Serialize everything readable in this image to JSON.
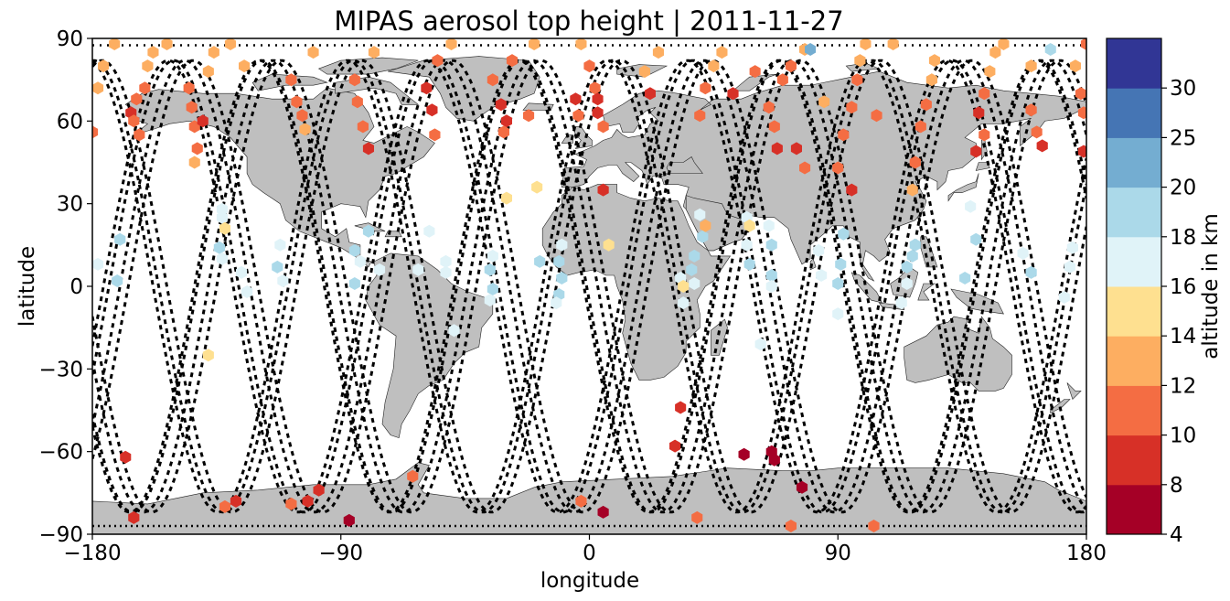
{
  "chart_data": {
    "type": "scatter",
    "title": "MIPAS aerosol top height | 2011-11-27",
    "xlabel": "longitude",
    "ylabel": "latitude",
    "xlim": [
      -180,
      180
    ],
    "ylim": [
      -90,
      90
    ],
    "x_ticks": [
      -180,
      -90,
      0,
      90,
      180
    ],
    "x_tick_labels": [
      "−180",
      "−90",
      "0",
      "90",
      "180"
    ],
    "y_ticks": [
      -90,
      -60,
      -30,
      0,
      30,
      60,
      90
    ],
    "y_tick_labels": [
      "−90",
      "−60",
      "−30",
      "0",
      "30",
      "60",
      "90"
    ],
    "grid": false,
    "background": "world map (gray land)",
    "land_color": "#bfbfbf",
    "track_style": "black dotted satellite ground tracks",
    "colorbar": {
      "label": "altitude in km",
      "boundaries": [
        4,
        8,
        10,
        12,
        14,
        16,
        18,
        20,
        25,
        30
      ],
      "tick_labels": [
        "4",
        "8",
        "10",
        "12",
        "14",
        "16",
        "18",
        "20",
        "25",
        "30"
      ],
      "colors": [
        "#a50026",
        "#d73027",
        "#f46d43",
        "#fdae61",
        "#fee090",
        "#e0f3f8",
        "#abd9e9",
        "#74add1",
        "#4575b4",
        "#313695"
      ]
    },
    "points": [
      {
        "lon": -178,
        "lat": 72,
        "alt": 13
      },
      {
        "lon": -176,
        "lat": 80,
        "alt": 13
      },
      {
        "lon": -172,
        "lat": 88,
        "alt": 13
      },
      {
        "lon": -180,
        "lat": 56,
        "alt": 11
      },
      {
        "lon": -166,
        "lat": 63,
        "alt": 9
      },
      {
        "lon": -164,
        "lat": 68,
        "alt": 11
      },
      {
        "lon": -165,
        "lat": 60,
        "alt": 11
      },
      {
        "lon": -163,
        "lat": 55,
        "alt": 11
      },
      {
        "lon": -161,
        "lat": 72,
        "alt": 11
      },
      {
        "lon": -160,
        "lat": 80,
        "alt": 13
      },
      {
        "lon": -158,
        "lat": 85,
        "alt": 13
      },
      {
        "lon": -153,
        "lat": 88,
        "alt": 13
      },
      {
        "lon": -145,
        "lat": 72,
        "alt": 11
      },
      {
        "lon": -144,
        "lat": 65,
        "alt": 11
      },
      {
        "lon": -143,
        "lat": 58,
        "alt": 11
      },
      {
        "lon": -142,
        "lat": 50,
        "alt": 11
      },
      {
        "lon": -143,
        "lat": 45,
        "alt": 13
      },
      {
        "lon": -140,
        "lat": 60,
        "alt": 9
      },
      {
        "lon": -138,
        "lat": 78,
        "alt": 13
      },
      {
        "lon": -136,
        "lat": 85,
        "alt": 13
      },
      {
        "lon": -130,
        "lat": 88,
        "alt": 13
      },
      {
        "lon": -125,
        "lat": 80,
        "alt": 13
      },
      {
        "lon": -108,
        "lat": 75,
        "alt": 11
      },
      {
        "lon": -106,
        "lat": 67,
        "alt": 11
      },
      {
        "lon": -104,
        "lat": 62,
        "alt": 11
      },
      {
        "lon": -103,
        "lat": 57,
        "alt": 13
      },
      {
        "lon": -100,
        "lat": 85,
        "alt": 13
      },
      {
        "lon": -85,
        "lat": 75,
        "alt": 11
      },
      {
        "lon": -84,
        "lat": 67,
        "alt": 11
      },
      {
        "lon": -82,
        "lat": 58,
        "alt": 11
      },
      {
        "lon": -80,
        "lat": 50,
        "alt": 9
      },
      {
        "lon": -78,
        "lat": 85,
        "alt": 13
      },
      {
        "lon": -59,
        "lat": 72,
        "alt": 9
      },
      {
        "lon": -57,
        "lat": 64,
        "alt": 9
      },
      {
        "lon": -56,
        "lat": 55,
        "alt": 11
      },
      {
        "lon": -55,
        "lat": 82,
        "alt": 11
      },
      {
        "lon": -50,
        "lat": 88,
        "alt": 13
      },
      {
        "lon": -35,
        "lat": 75,
        "alt": 11
      },
      {
        "lon": -32,
        "lat": 66,
        "alt": 9
      },
      {
        "lon": -30,
        "lat": 60,
        "alt": 9
      },
      {
        "lon": -31,
        "lat": 56,
        "alt": 11
      },
      {
        "lon": -28,
        "lat": 82,
        "alt": 11
      },
      {
        "lon": -22,
        "lat": 62,
        "alt": 11
      },
      {
        "lon": -20,
        "lat": 88,
        "alt": 13
      },
      {
        "lon": -5,
        "lat": 68,
        "alt": 9
      },
      {
        "lon": -4,
        "lat": 62,
        "alt": 11
      },
      {
        "lon": -3,
        "lat": 88,
        "alt": 13
      },
      {
        "lon": 0,
        "lat": 80,
        "alt": 11
      },
      {
        "lon": 2,
        "lat": 72,
        "alt": 11
      },
      {
        "lon": 3,
        "lat": 68,
        "alt": 9
      },
      {
        "lon": 3,
        "lat": 63,
        "alt": 9
      },
      {
        "lon": 5,
        "lat": 58,
        "alt": 11
      },
      {
        "lon": 20,
        "lat": 78,
        "alt": 13
      },
      {
        "lon": 22,
        "lat": 70,
        "alt": 9
      },
      {
        "lon": 25,
        "lat": 85,
        "alt": 13
      },
      {
        "lon": 40,
        "lat": 62,
        "alt": 11
      },
      {
        "lon": 42,
        "lat": 72,
        "alt": 11
      },
      {
        "lon": 45,
        "lat": 80,
        "alt": 13
      },
      {
        "lon": 48,
        "lat": 85,
        "alt": 13
      },
      {
        "lon": 52,
        "lat": 70,
        "alt": 9
      },
      {
        "lon": 65,
        "lat": 65,
        "alt": 11
      },
      {
        "lon": 67,
        "lat": 58,
        "alt": 11
      },
      {
        "lon": 68,
        "lat": 50,
        "alt": 9
      },
      {
        "lon": 70,
        "lat": 75,
        "alt": 11
      },
      {
        "lon": 73,
        "lat": 80,
        "alt": 11
      },
      {
        "lon": 78,
        "lat": 86,
        "alt": 13
      },
      {
        "lon": 75,
        "lat": 50,
        "alt": 9
      },
      {
        "lon": 78,
        "lat": 43,
        "alt": 11
      },
      {
        "lon": 80,
        "lat": 86,
        "alt": 22
      },
      {
        "lon": 90,
        "lat": 43,
        "alt": 11
      },
      {
        "lon": 92,
        "lat": 55,
        "alt": 11
      },
      {
        "lon": 95,
        "lat": 65,
        "alt": 11
      },
      {
        "lon": 97,
        "lat": 75,
        "alt": 11
      },
      {
        "lon": 98,
        "lat": 82,
        "alt": 13
      },
      {
        "lon": 100,
        "lat": 88,
        "alt": 13
      },
      {
        "lon": 104,
        "lat": 62,
        "alt": 11
      },
      {
        "lon": 110,
        "lat": 88,
        "alt": 13
      },
      {
        "lon": 118,
        "lat": 45,
        "alt": 11
      },
      {
        "lon": 120,
        "lat": 58,
        "alt": 11
      },
      {
        "lon": 122,
        "lat": 66,
        "alt": 11
      },
      {
        "lon": 124,
        "lat": 75,
        "alt": 13
      },
      {
        "lon": 125,
        "lat": 82,
        "alt": 13
      },
      {
        "lon": 117,
        "lat": 35,
        "alt": 13
      },
      {
        "lon": 141,
        "lat": 63,
        "alt": 9
      },
      {
        "lon": 143,
        "lat": 70,
        "alt": 11
      },
      {
        "lon": 145,
        "lat": 78,
        "alt": 13
      },
      {
        "lon": 147,
        "lat": 85,
        "alt": 13
      },
      {
        "lon": 150,
        "lat": 88,
        "alt": 13
      },
      {
        "lon": 160,
        "lat": 64,
        "alt": 11
      },
      {
        "lon": 162,
        "lat": 56,
        "alt": 11
      },
      {
        "lon": 164,
        "lat": 51,
        "alt": 9
      },
      {
        "lon": 160,
        "lat": 80,
        "alt": 13
      },
      {
        "lon": 167,
        "lat": 86,
        "alt": 19
      },
      {
        "lon": 176,
        "lat": 80,
        "alt": 13
      },
      {
        "lon": 178,
        "lat": 70,
        "alt": 11
      },
      {
        "lon": 179,
        "lat": 63,
        "alt": 11
      },
      {
        "lon": 179,
        "lat": 49,
        "alt": 9
      },
      {
        "lon": 180,
        "lat": 88,
        "alt": 11
      },
      {
        "lon": 140,
        "lat": 49,
        "alt": 9
      },
      {
        "lon": 143,
        "lat": 55,
        "alt": 11
      },
      {
        "lon": 85,
        "lat": 67,
        "alt": 13
      },
      {
        "lon": 60,
        "lat": 78,
        "alt": 11
      },
      {
        "lon": 95,
        "lat": 35,
        "alt": 9
      },
      {
        "lon": 5,
        "lat": 35,
        "alt": 9
      },
      {
        "lon": -30,
        "lat": 32,
        "alt": 15
      },
      {
        "lon": -19,
        "lat": 36,
        "alt": 15
      },
      {
        "lon": -170,
        "lat": 17,
        "alt": 19
      },
      {
        "lon": -171,
        "lat": 2,
        "alt": 19
      },
      {
        "lon": -178,
        "lat": 8,
        "alt": 17
      },
      {
        "lon": -133,
        "lat": 25,
        "alt": 17
      },
      {
        "lon": -134,
        "lat": 14,
        "alt": 19
      },
      {
        "lon": -133,
        "lat": 28,
        "alt": 17
      },
      {
        "lon": -132,
        "lat": 21,
        "alt": 15
      },
      {
        "lon": -133,
        "lat": 10,
        "alt": 17
      },
      {
        "lon": -126,
        "lat": 5,
        "alt": 17
      },
      {
        "lon": -124,
        "lat": -2,
        "alt": 17
      },
      {
        "lon": -112,
        "lat": 15,
        "alt": 17
      },
      {
        "lon": -113,
        "lat": 7,
        "alt": 19
      },
      {
        "lon": -111,
        "lat": 2,
        "alt": 17
      },
      {
        "lon": -85,
        "lat": 13,
        "alt": 19
      },
      {
        "lon": -83,
        "lat": 9,
        "alt": 17
      },
      {
        "lon": -85,
        "lat": 1,
        "alt": 19
      },
      {
        "lon": -80,
        "lat": 20,
        "alt": 19
      },
      {
        "lon": -76,
        "lat": 6,
        "alt": 17
      },
      {
        "lon": -58,
        "lat": 20,
        "alt": 17
      },
      {
        "lon": -62,
        "lat": 6,
        "alt": 17
      },
      {
        "lon": -52,
        "lat": 9,
        "alt": 17
      },
      {
        "lon": -49,
        "lat": -16,
        "alt": 17
      },
      {
        "lon": -52,
        "lat": 5,
        "alt": 17
      },
      {
        "lon": -35,
        "lat": 11,
        "alt": 17
      },
      {
        "lon": -36,
        "lat": 6,
        "alt": 19
      },
      {
        "lon": -35,
        "lat": -1,
        "alt": 19
      },
      {
        "lon": -36,
        "lat": -5,
        "alt": 17
      },
      {
        "lon": -18,
        "lat": 9,
        "alt": 19
      },
      {
        "lon": -10,
        "lat": 15,
        "alt": 17
      },
      {
        "lon": -11,
        "lat": 9,
        "alt": 19
      },
      {
        "lon": -10,
        "lat": 3,
        "alt": 19
      },
      {
        "lon": -11,
        "lat": -3,
        "alt": 19
      },
      {
        "lon": -12,
        "lat": -6,
        "alt": 17
      },
      {
        "lon": 7,
        "lat": 15,
        "alt": 15
      },
      {
        "lon": 40,
        "lat": 26,
        "alt": 17
      },
      {
        "lon": 41,
        "lat": 18,
        "alt": 19
      },
      {
        "lon": 42,
        "lat": 22,
        "alt": 13
      },
      {
        "lon": 38,
        "lat": 11,
        "alt": 19
      },
      {
        "lon": 37,
        "lat": 6,
        "alt": 19
      },
      {
        "lon": 38,
        "lat": 1,
        "alt": 17
      },
      {
        "lon": 33,
        "lat": 3,
        "alt": 17
      },
      {
        "lon": 34,
        "lat": -6,
        "alt": 17
      },
      {
        "lon": 34,
        "lat": 0,
        "alt": 15
      },
      {
        "lon": 57,
        "lat": 25,
        "alt": 17
      },
      {
        "lon": 58,
        "lat": 22,
        "alt": 15
      },
      {
        "lon": 57,
        "lat": 15,
        "alt": 17
      },
      {
        "lon": 58,
        "lat": 8,
        "alt": 19
      },
      {
        "lon": 65,
        "lat": 22,
        "alt": 17
      },
      {
        "lon": 66,
        "lat": 15,
        "alt": 19
      },
      {
        "lon": 66,
        "lat": 4,
        "alt": 19
      },
      {
        "lon": 66,
        "lat": 0,
        "alt": 17
      },
      {
        "lon": 62,
        "lat": -21,
        "alt": 17
      },
      {
        "lon": 83,
        "lat": 13,
        "alt": 17
      },
      {
        "lon": 84,
        "lat": 4,
        "alt": 17
      },
      {
        "lon": 90,
        "lat": 1,
        "alt": 19
      },
      {
        "lon": 91,
        "lat": 8,
        "alt": 19
      },
      {
        "lon": 90,
        "lat": -10,
        "alt": 17
      },
      {
        "lon": 92,
        "lat": 19,
        "alt": 19
      },
      {
        "lon": 118,
        "lat": 15,
        "alt": 19
      },
      {
        "lon": 117,
        "lat": 11,
        "alt": 19
      },
      {
        "lon": 115,
        "lat": 7,
        "alt": 19
      },
      {
        "lon": 115,
        "lat": 1,
        "alt": 17
      },
      {
        "lon": 113,
        "lat": -6,
        "alt": 17
      },
      {
        "lon": 138,
        "lat": 29,
        "alt": 17
      },
      {
        "lon": 140,
        "lat": 17,
        "alt": 19
      },
      {
        "lon": 136,
        "lat": 3,
        "alt": 19
      },
      {
        "lon": 157,
        "lat": 12,
        "alt": 17
      },
      {
        "lon": 160,
        "lat": 5,
        "alt": 19
      },
      {
        "lon": 175,
        "lat": 14,
        "alt": 17
      },
      {
        "lon": 174,
        "lat": 7,
        "alt": 17
      },
      {
        "lon": 172,
        "lat": -4,
        "alt": 17
      },
      {
        "lon": -138,
        "lat": -25,
        "alt": 15
      },
      {
        "lon": -168,
        "lat": -62,
        "alt": 9
      },
      {
        "lon": -165,
        "lat": -84,
        "alt": 9
      },
      {
        "lon": -132,
        "lat": -80,
        "alt": 11
      },
      {
        "lon": -128,
        "lat": -78,
        "alt": 9
      },
      {
        "lon": -108,
        "lat": -79,
        "alt": 11
      },
      {
        "lon": -102,
        "lat": -78,
        "alt": 9
      },
      {
        "lon": -98,
        "lat": -74,
        "alt": 9
      },
      {
        "lon": -87,
        "lat": -85,
        "alt": 6
      },
      {
        "lon": -64,
        "lat": -69,
        "alt": 11
      },
      {
        "lon": -3,
        "lat": -78,
        "alt": 11
      },
      {
        "lon": 5,
        "lat": -82,
        "alt": 6
      },
      {
        "lon": 33,
        "lat": -44,
        "alt": 9
      },
      {
        "lon": 31,
        "lat": -58,
        "alt": 9
      },
      {
        "lon": 56,
        "lat": -61,
        "alt": 6
      },
      {
        "lon": 66,
        "lat": -60,
        "alt": 6
      },
      {
        "lon": 67,
        "lat": -63,
        "alt": 6
      },
      {
        "lon": 77,
        "lat": -73,
        "alt": 6
      },
      {
        "lon": 73,
        "lat": -87,
        "alt": 11
      },
      {
        "lon": 39,
        "lat": -84,
        "alt": 11
      },
      {
        "lon": 103,
        "lat": -87,
        "alt": 11
      }
    ]
  }
}
